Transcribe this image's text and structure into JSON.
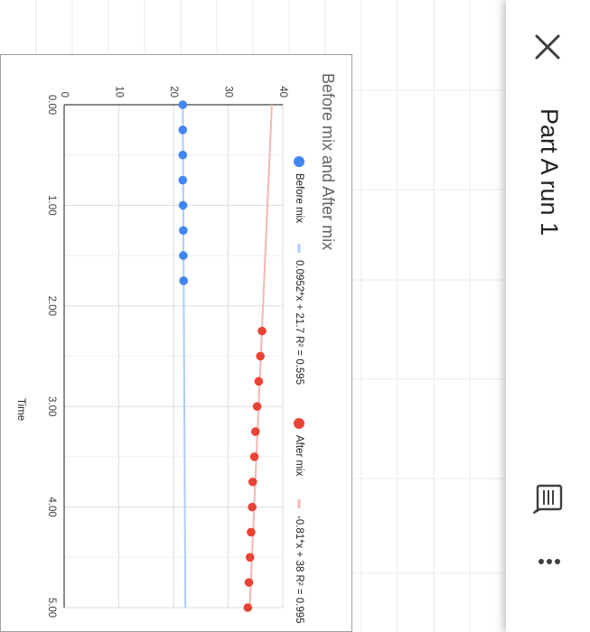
{
  "app_bar": {
    "title": "Part A run 1",
    "close_icon": "close-icon",
    "notes_icon": "notes-icon",
    "more_icon": "more-vert-icon"
  },
  "chart": {
    "title": "Before mix and After mix"
  },
  "chart_data": {
    "type": "scatter",
    "title": "Before mix and After mix",
    "xlabel": "Time",
    "ylabel": "",
    "xlim": [
      0,
      5
    ],
    "ylim": [
      0,
      40
    ],
    "x_ticks": [
      "0.00",
      "1.00",
      "2.00",
      "3.00",
      "4.00",
      "5.00"
    ],
    "y_ticks": [
      "0",
      "10",
      "20",
      "30",
      "40"
    ],
    "grid": true,
    "legend_position": "top",
    "series": [
      {
        "name": "Before mix",
        "color": "#4285f4",
        "x": [
          0.0,
          0.25,
          0.5,
          0.75,
          1.0,
          1.25,
          1.5,
          1.75
        ],
        "y": [
          21.7,
          21.7,
          21.7,
          21.7,
          21.75,
          21.8,
          21.8,
          21.85
        ]
      },
      {
        "name": "After mix",
        "color": "#ea4335",
        "x": [
          2.25,
          2.5,
          2.75,
          3.0,
          3.25,
          3.5,
          3.75,
          4.0,
          4.25,
          4.5,
          4.75,
          5.0
        ],
        "y": [
          36.2,
          35.9,
          35.6,
          35.3,
          35.0,
          34.8,
          34.5,
          34.4,
          34.2,
          34.0,
          33.8,
          33.6
        ]
      }
    ],
    "trendlines": [
      {
        "label": "0.0952*x + 21.7 R² = 0.595",
        "color": "#aecbfa",
        "slope": 0.0952,
        "intercept": 21.7,
        "x_range": [
          0,
          5
        ]
      },
      {
        "label": "-0.81*x + 38 R² = 0.995",
        "color": "#f4b8b2",
        "slope": -0.81,
        "intercept": 38,
        "x_range": [
          0,
          5
        ]
      }
    ]
  }
}
